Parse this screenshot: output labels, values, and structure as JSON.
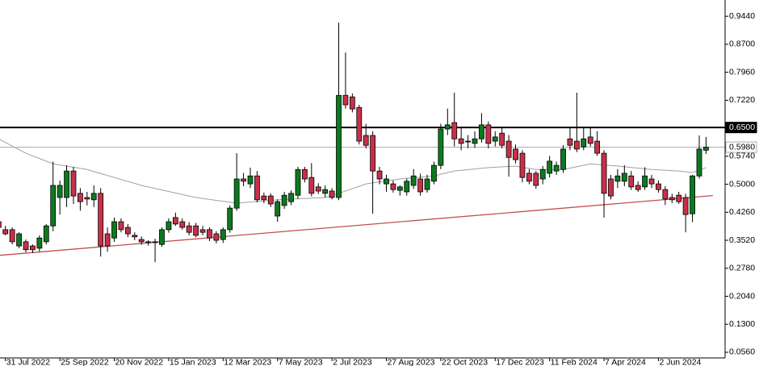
{
  "chart_data": {
    "type": "candlestick",
    "up_color": "#0b7a1e",
    "down_color": "#c8304a",
    "xlim": [
      -0.8,
      105.8
    ],
    "ylim": [
      0.041,
      0.987
    ],
    "xticks": [
      {
        "value": 0,
        "label": "31 Jul 2022"
      },
      {
        "value": 8,
        "label": "25 Sep 2022"
      },
      {
        "value": 16,
        "label": "20 Nov 2022"
      },
      {
        "value": 24,
        "label": "15 Jan 2023"
      },
      {
        "value": 32,
        "label": "12 Mar 2023"
      },
      {
        "value": 40,
        "label": "7 May 2023"
      },
      {
        "value": 48,
        "label": "2 Jul 2023"
      },
      {
        "value": 56,
        "label": "27 Aug 2023"
      },
      {
        "value": 64,
        "label": "22 Oct 2023"
      },
      {
        "value": 72,
        "label": "17 Dec 2023"
      },
      {
        "value": 80,
        "label": "11 Feb 2024"
      },
      {
        "value": 88,
        "label": "7 Apr 2024"
      },
      {
        "value": 96,
        "label": "2 Jun 2024"
      }
    ],
    "yticks": [
      {
        "value": 0.944,
        "label": "0.9440"
      },
      {
        "value": 0.87,
        "label": "0.8700"
      },
      {
        "value": 0.796,
        "label": "0.7960"
      },
      {
        "value": 0.722,
        "label": "0.7220"
      },
      {
        "value": 0.574,
        "label": "0.5740"
      },
      {
        "value": 0.5,
        "label": "0.5000"
      },
      {
        "value": 0.426,
        "label": "0.4260"
      },
      {
        "value": 0.352,
        "label": "0.3520"
      },
      {
        "value": 0.278,
        "label": "0.2780"
      },
      {
        "value": 0.204,
        "label": "0.2040"
      },
      {
        "value": 0.13,
        "label": "0.1300"
      },
      {
        "value": 0.056,
        "label": "0.0560"
      }
    ],
    "levels": [
      {
        "value": 0.65,
        "label": "0.6500",
        "color": "#000000"
      },
      {
        "value": 0.598,
        "label": "0.5980",
        "color": "#a8a8a8"
      }
    ],
    "x": [
      -1,
      0,
      1,
      2,
      3,
      4,
      5,
      6,
      7,
      8,
      9,
      10,
      11,
      12,
      13,
      14,
      15,
      16,
      17,
      18,
      19,
      20,
      21,
      22,
      23,
      24,
      25,
      26,
      27,
      28,
      29,
      30,
      31,
      32,
      33,
      34,
      35,
      36,
      37,
      38,
      39,
      40,
      41,
      42,
      43,
      44,
      45,
      46,
      47,
      48,
      49,
      50,
      51,
      52,
      53,
      54,
      55,
      56,
      57,
      58,
      59,
      60,
      61,
      62,
      63,
      64,
      65,
      66,
      67,
      68,
      69,
      70,
      71,
      72,
      73,
      74,
      75,
      76,
      77,
      78,
      79,
      80,
      81,
      82,
      83,
      84,
      85,
      86,
      87,
      88,
      89,
      90,
      91,
      92,
      93,
      94,
      95,
      96,
      97,
      98,
      99,
      100,
      101,
      102,
      103
    ],
    "open": [
      0.401,
      0.38,
      0.38,
      0.337,
      0.348,
      0.337,
      0.331,
      0.348,
      0.39,
      0.465,
      0.465,
      0.535,
      0.476,
      0.465,
      0.459,
      0.476,
      0.369,
      0.358,
      0.401,
      0.386,
      0.365,
      0.354,
      0.348,
      0.348,
      0.341,
      0.38,
      0.412,
      0.401,
      0.39,
      0.39,
      0.38,
      0.38,
      0.369,
      0.354,
      0.38,
      0.437,
      0.514,
      0.501,
      0.522,
      0.469,
      0.469,
      0.416,
      0.444,
      0.454,
      0.471,
      0.539,
      0.518,
      0.493,
      0.476,
      0.482,
      0.465,
      0.735,
      0.731,
      0.703,
      0.629,
      0.629,
      0.535,
      0.501,
      0.501,
      0.484,
      0.48,
      0.497,
      0.514,
      0.486,
      0.508,
      0.55,
      0.646,
      0.663,
      0.62,
      0.612,
      0.608,
      0.62,
      0.657,
      0.614,
      0.635,
      0.614,
      0.593,
      0.582,
      0.529,
      0.529,
      0.514,
      0.529,
      0.535,
      0.539,
      0.62,
      0.614,
      0.599,
      0.625,
      0.614,
      0.582,
      0.514,
      0.508,
      0.508,
      0.522,
      0.497,
      0.493,
      0.514,
      0.501,
      0.486,
      0.465,
      0.471,
      0.465,
      0.422,
      0.522,
      0.59
    ],
    "high": [
      0.41,
      0.39,
      0.386,
      0.373,
      0.354,
      0.341,
      0.365,
      0.395,
      0.56,
      0.51,
      0.55,
      0.546,
      0.49,
      0.48,
      0.497,
      0.49,
      0.386,
      0.412,
      0.41,
      0.395,
      0.373,
      0.362,
      0.352,
      0.356,
      0.386,
      0.41,
      0.425,
      0.41,
      0.4,
      0.398,
      0.39,
      0.386,
      0.376,
      0.386,
      0.444,
      0.582,
      0.53,
      0.544,
      0.535,
      0.478,
      0.476,
      0.46,
      0.48,
      0.484,
      0.546,
      0.546,
      0.556,
      0.503,
      0.497,
      0.49,
      0.927,
      0.848,
      0.74,
      0.71,
      0.66,
      0.64,
      0.546,
      0.525,
      0.51,
      0.497,
      0.515,
      0.54,
      0.528,
      0.525,
      0.56,
      0.66,
      0.7,
      0.742,
      0.65,
      0.63,
      0.64,
      0.688,
      0.666,
      0.64,
      0.65,
      0.63,
      0.605,
      0.59,
      0.54,
      0.535,
      0.548,
      0.575,
      0.56,
      0.603,
      0.65,
      0.742,
      0.65,
      0.65,
      0.64,
      0.59,
      0.525,
      0.54,
      0.55,
      0.535,
      0.508,
      0.545,
      0.525,
      0.51,
      0.495,
      0.475,
      0.48,
      0.475,
      0.525,
      0.629,
      0.625
    ],
    "low": [
      0.376,
      0.365,
      0.341,
      0.331,
      0.32,
      0.318,
      0.322,
      0.341,
      0.376,
      0.42,
      0.44,
      0.448,
      0.43,
      0.444,
      0.44,
      0.309,
      0.322,
      0.348,
      0.373,
      0.36,
      0.352,
      0.34,
      0.338,
      0.294,
      0.335,
      0.372,
      0.39,
      0.38,
      0.365,
      0.36,
      0.365,
      0.35,
      0.344,
      0.345,
      0.372,
      0.43,
      0.495,
      0.49,
      0.452,
      0.45,
      0.44,
      0.401,
      0.435,
      0.445,
      0.462,
      0.505,
      0.468,
      0.474,
      0.465,
      0.46,
      0.458,
      0.7,
      0.69,
      0.605,
      0.595,
      0.422,
      0.5,
      0.48,
      0.478,
      0.47,
      0.47,
      0.488,
      0.47,
      0.478,
      0.5,
      0.54,
      0.63,
      0.6,
      0.59,
      0.595,
      0.596,
      0.61,
      0.595,
      0.6,
      0.595,
      0.52,
      0.555,
      0.505,
      0.5,
      0.488,
      0.5,
      0.518,
      0.525,
      0.53,
      0.59,
      0.585,
      0.59,
      0.6,
      0.575,
      0.412,
      0.46,
      0.49,
      0.495,
      0.485,
      0.48,
      0.485,
      0.49,
      0.478,
      0.445,
      0.45,
      0.448,
      0.373,
      0.4,
      0.515,
      0.58
    ],
    "close": [
      0.386,
      0.369,
      0.348,
      0.369,
      0.327,
      0.327,
      0.358,
      0.39,
      0.497,
      0.497,
      0.535,
      0.469,
      0.454,
      0.461,
      0.476,
      0.337,
      0.337,
      0.401,
      0.38,
      0.369,
      0.361,
      0.348,
      0.346,
      0.346,
      0.38,
      0.401,
      0.395,
      0.386,
      0.373,
      0.365,
      0.373,
      0.358,
      0.352,
      0.38,
      0.437,
      0.514,
      0.508,
      0.522,
      0.459,
      0.459,
      0.448,
      0.454,
      0.471,
      0.476,
      0.539,
      0.514,
      0.476,
      0.482,
      0.486,
      0.465,
      0.735,
      0.71,
      0.699,
      0.614,
      0.603,
      0.535,
      0.514,
      0.514,
      0.486,
      0.493,
      0.508,
      0.522,
      0.48,
      0.514,
      0.55,
      0.646,
      0.657,
      0.62,
      0.608,
      0.614,
      0.62,
      0.657,
      0.608,
      0.625,
      0.603,
      0.571,
      0.565,
      0.518,
      0.508,
      0.497,
      0.539,
      0.561,
      0.55,
      0.593,
      0.603,
      0.593,
      0.62,
      0.608,
      0.582,
      0.476,
      0.469,
      0.522,
      0.529,
      0.493,
      0.486,
      0.522,
      0.501,
      0.486,
      0.461,
      0.459,
      0.454,
      0.42,
      0.522,
      0.593,
      0.598
    ],
    "moving_average": {
      "color": "#a0a0a0",
      "x": [
        -1,
        3,
        7,
        12,
        20,
        28,
        34,
        40,
        47,
        49,
        53,
        58,
        63,
        66,
        71,
        75,
        78,
        82,
        86,
        90,
        95,
        99,
        101,
        103
      ],
      "values": [
        0.62,
        0.582,
        0.554,
        0.539,
        0.497,
        0.465,
        0.45,
        0.459,
        0.465,
        0.476,
        0.501,
        0.514,
        0.522,
        0.535,
        0.544,
        0.548,
        0.539,
        0.539,
        0.554,
        0.548,
        0.539,
        0.535,
        0.531,
        0.544
      ]
    },
    "trendline": {
      "color": "#c0504d",
      "x": [
        -1,
        104
      ],
      "values": [
        0.312,
        0.47
      ]
    }
  }
}
